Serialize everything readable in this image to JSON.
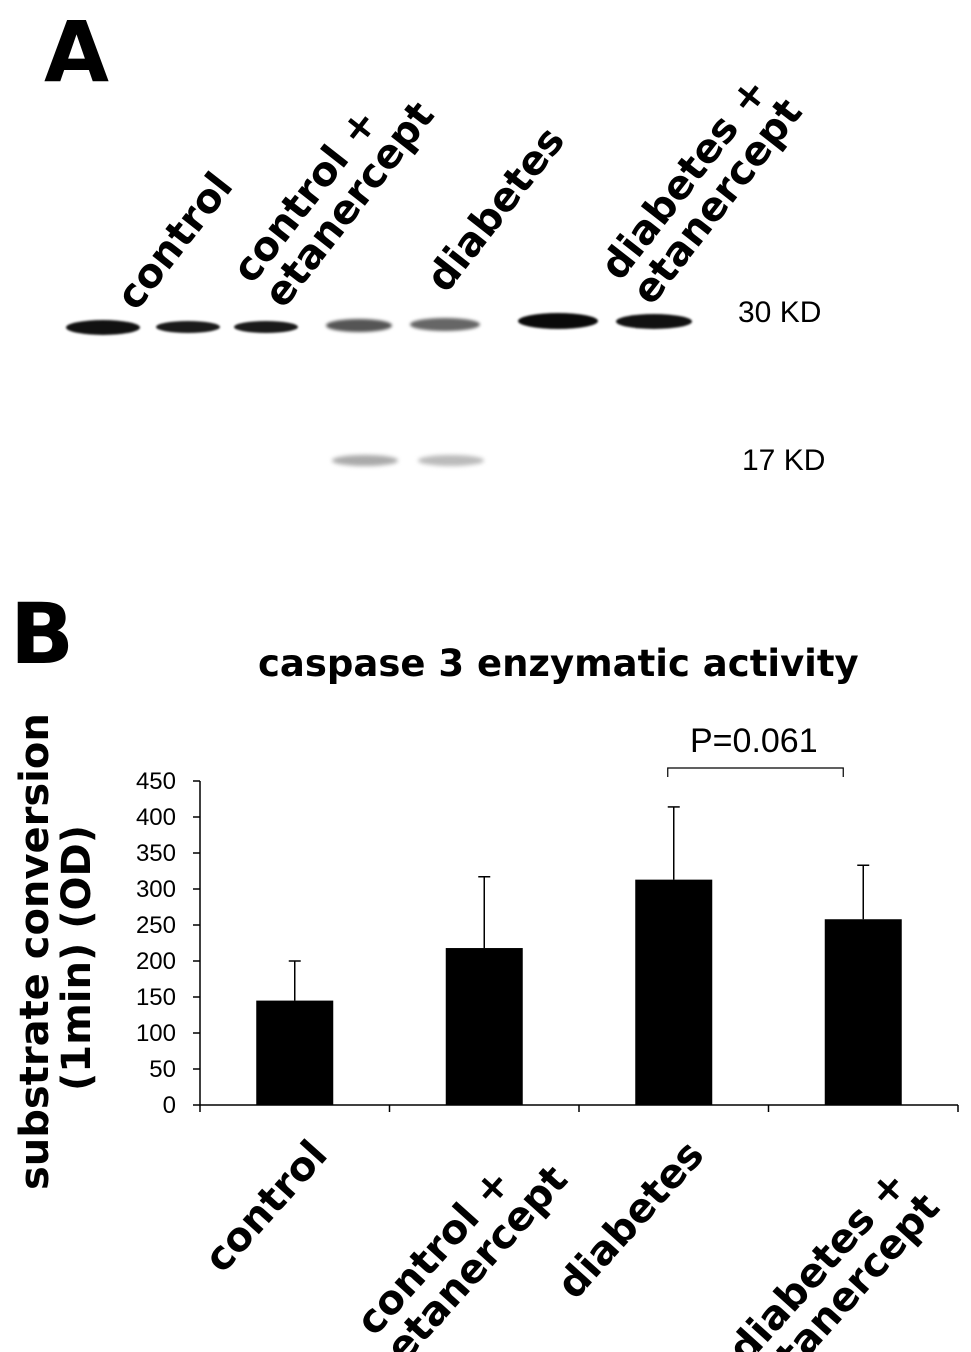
{
  "panel_a": {
    "letter": "A",
    "lane_labels": [
      "control",
      "control +\netanercept",
      "diabetes",
      "diabetes +\netanercept"
    ],
    "markers": [
      "30 KD",
      "17 KD"
    ],
    "band_color": "#111111"
  },
  "panel_b": {
    "letter": "B",
    "annotation": "P=0.061"
  },
  "chart_data": {
    "type": "bar",
    "title": "caspase 3 enzymatic activity",
    "ylabel": "substrate conversion\n(1min) (OD)",
    "xlabel": "",
    "categories": [
      "control",
      "control +\netanercept",
      "diabetes",
      "diabetes +\netanercept"
    ],
    "values": [
      145,
      218,
      313,
      258
    ],
    "error_upper": [
      200,
      317,
      414,
      333
    ],
    "ylim": [
      0,
      450
    ],
    "yticks": [
      "0",
      "50",
      "100",
      "150",
      "200",
      "250",
      "300",
      "350",
      "400",
      "450"
    ],
    "grid": false,
    "bar_color": "#000000",
    "comparison": {
      "from_index": 2,
      "to_index": 3,
      "label": "P=0.061"
    }
  }
}
